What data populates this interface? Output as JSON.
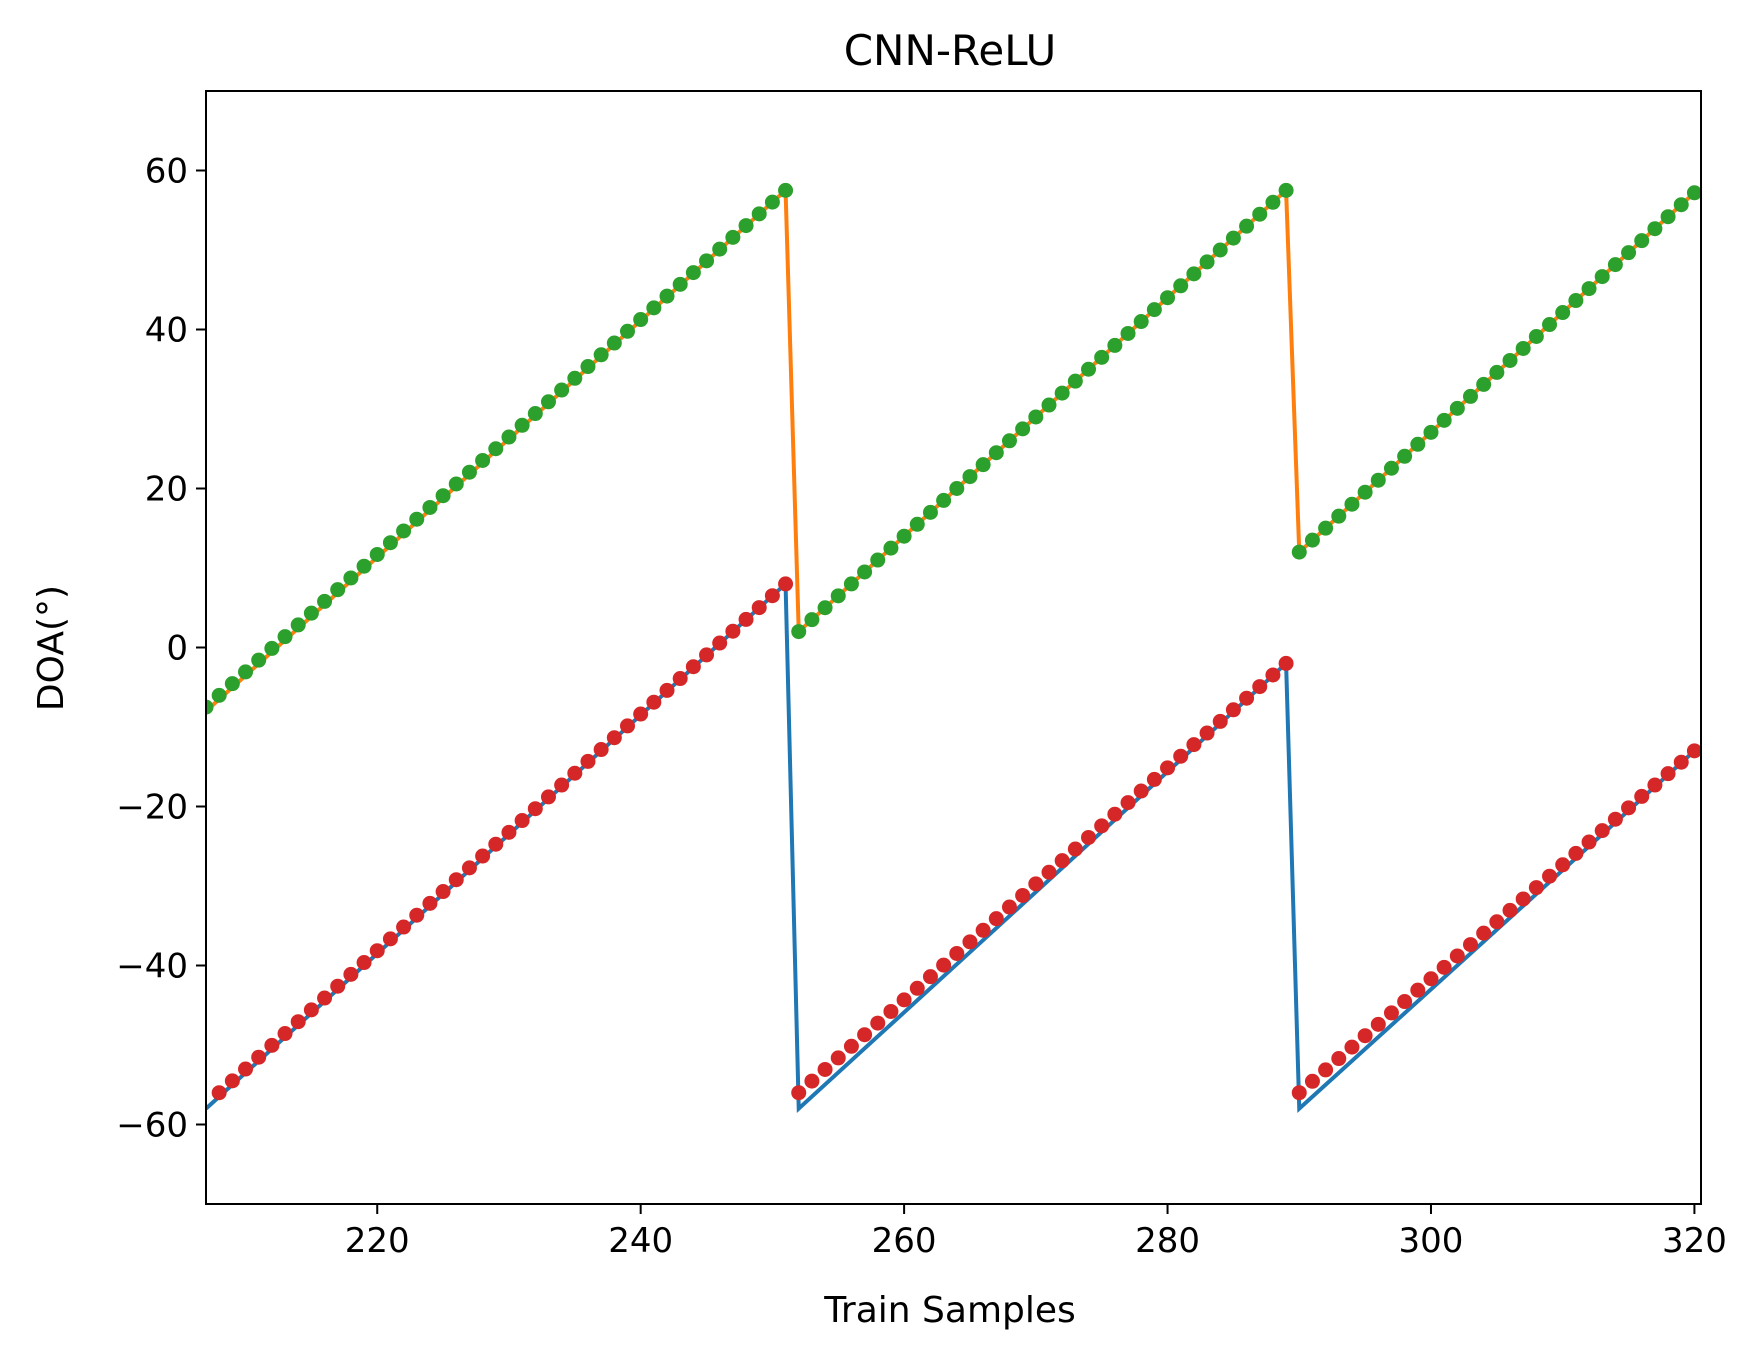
{
  "chart_data": {
    "type": "line",
    "title": "CNN-ReLU",
    "xlabel": "Train Samples",
    "ylabel": "DOA(°)",
    "xlim": [
      207,
      320.5
    ],
    "ylim": [
      -70,
      70
    ],
    "xticks": [
      220,
      240,
      260,
      280,
      300,
      320
    ],
    "yticks": [
      -60,
      -40,
      -20,
      0,
      20,
      40,
      60
    ],
    "xtick_labels": [
      "220",
      "240",
      "260",
      "280",
      "300",
      "320"
    ],
    "ytick_labels": [
      "−60",
      "−40",
      "−20",
      "0",
      "20",
      "40",
      "60"
    ],
    "grid": false,
    "legend": "none",
    "series": [
      {
        "kind": "line",
        "color": "#1f77b4",
        "x": [
          207,
          251,
          252,
          289,
          290,
          320
        ],
        "y": [
          -58,
          8,
          -58,
          -2,
          -58,
          -13
        ]
      },
      {
        "kind": "line",
        "color": "#ff7f0e",
        "x": [
          207,
          251,
          252,
          289,
          290,
          320
        ],
        "y": [
          -8,
          57.5,
          2,
          57.5,
          12,
          57.2
        ]
      },
      {
        "kind": "markers",
        "color": "#2ca02c",
        "segments": [
          {
            "x_start": 207,
            "x_end": 251,
            "y_start": -7.5,
            "y_end": 57.5
          },
          {
            "x_start": 252,
            "x_end": 289,
            "y_start": 2,
            "y_end": 57.5
          },
          {
            "x_start": 290,
            "x_end": 320,
            "y_start": 12,
            "y_end": 57.2
          }
        ]
      },
      {
        "kind": "markers",
        "color": "#d62728",
        "segments": [
          {
            "x_start": 208,
            "x_end": 251,
            "y_start": -56,
            "y_end": 8
          },
          {
            "x_start": 252,
            "x_end": 289,
            "y_start": -56,
            "y_end": -2
          },
          {
            "x_start": 290,
            "x_end": 320,
            "y_start": -56,
            "y_end": -13
          }
        ]
      }
    ]
  }
}
